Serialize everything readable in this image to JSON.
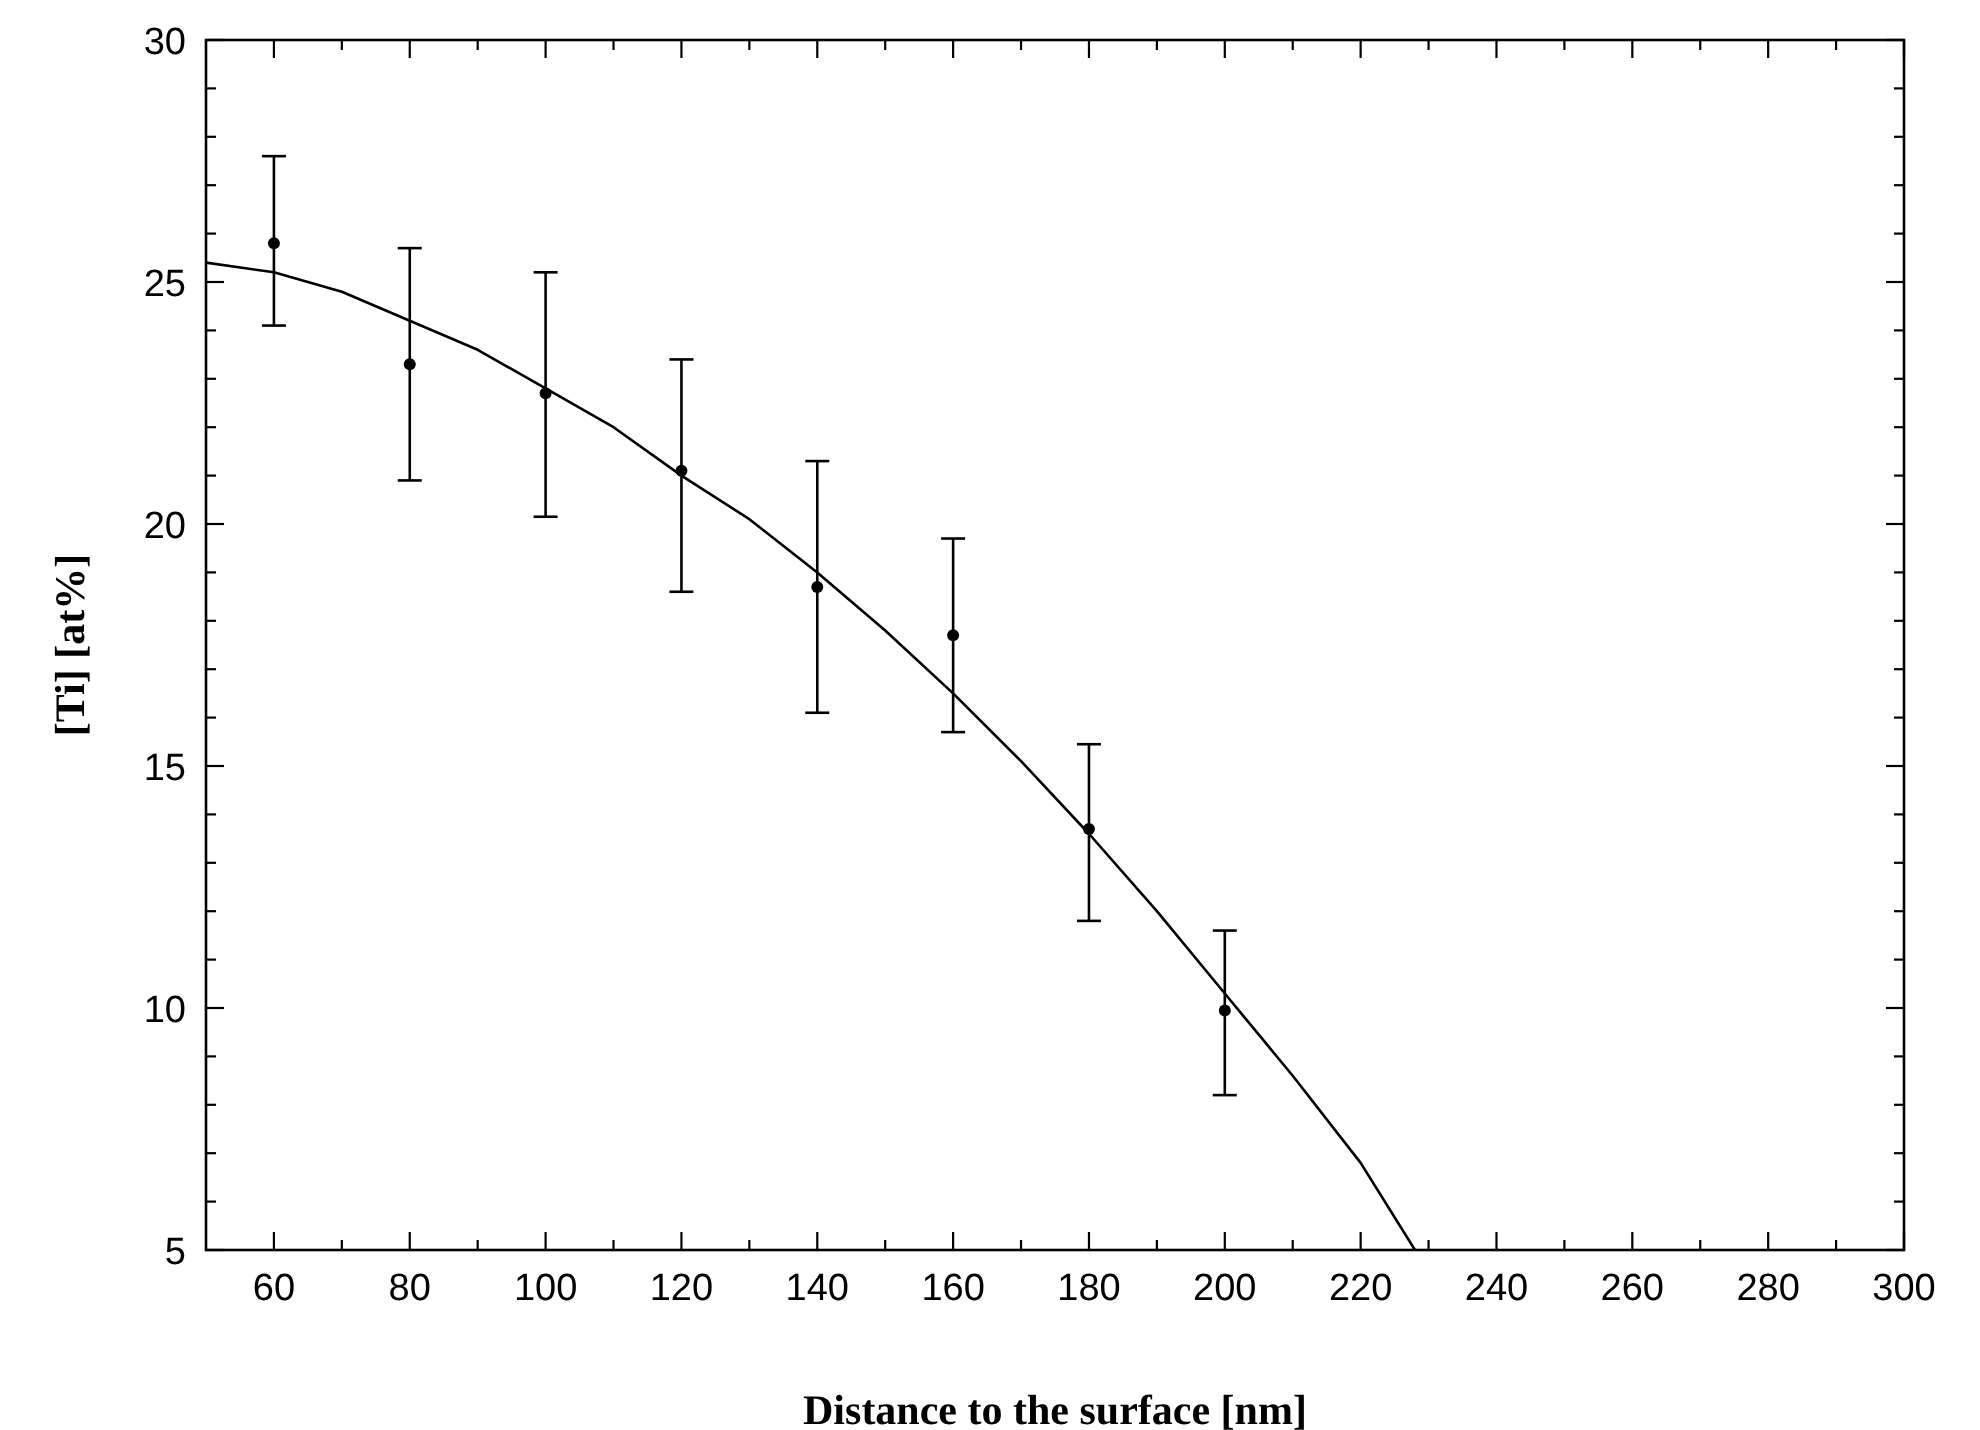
{
  "chart_data": {
    "type": "scatter",
    "xlabel": "Distance to the surface [nm]",
    "ylabel": "[Ti] [at%]",
    "xlim": [
      50,
      300
    ],
    "ylim": [
      5,
      30
    ],
    "xticks": [
      60,
      80,
      100,
      120,
      140,
      160,
      180,
      200,
      220,
      240,
      260,
      280,
      300
    ],
    "yticks": [
      5,
      10,
      15,
      20,
      25,
      30
    ],
    "grid": false,
    "series": [
      {
        "color": "#000000",
        "marker": "circle",
        "x": [
          60,
          80,
          100,
          120,
          140,
          160,
          180,
          200
        ],
        "values": [
          25.8,
          23.3,
          22.7,
          21.1,
          18.7,
          17.7,
          13.7,
          9.95
        ],
        "errors": [
          [
            24.1,
            27.6
          ],
          [
            20.9,
            25.7
          ],
          [
            20.15,
            25.2
          ],
          [
            18.6,
            23.4
          ],
          [
            16.1,
            21.3
          ],
          [
            15.7,
            19.7
          ],
          [
            11.8,
            15.45
          ],
          [
            8.2,
            11.6
          ]
        ]
      },
      {
        "type": "line",
        "color": "#000000",
        "line_style": "solid",
        "marker": "none",
        "x": [
          50,
          60,
          70,
          80,
          90,
          100,
          110,
          120,
          130,
          140,
          150,
          160,
          170,
          180,
          190,
          200,
          210,
          220,
          228
        ],
        "values": [
          25.4,
          25.2,
          24.8,
          24.2,
          23.6,
          22.8,
          22.0,
          21.0,
          20.1,
          19.0,
          17.8,
          16.5,
          15.1,
          13.6,
          12.0,
          10.3,
          8.6,
          6.8,
          5.0
        ]
      }
    ]
  }
}
